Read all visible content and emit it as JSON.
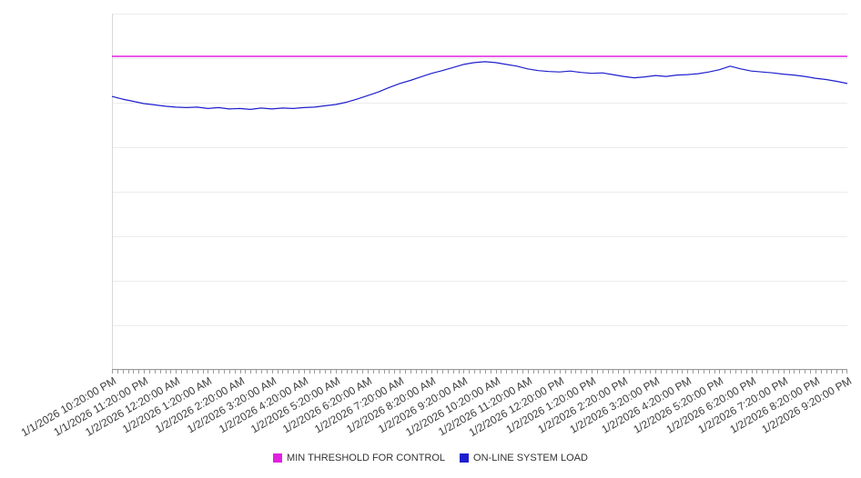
{
  "chart_data": {
    "type": "line",
    "title": "",
    "xlabel": "",
    "ylabel": "",
    "grid": true,
    "legend_position": "bottom",
    "ylim": [
      0,
      80
    ],
    "y_gridline_step": 10,
    "y_axis_labels_visible": false,
    "points_per_hour": 3,
    "minor_ticks_per_hour": 6,
    "x_labels": [
      "1/1/2026 10:20:00 PM",
      "1/1/2026 11:20:00 PM",
      "1/2/2026 12:20:00 AM",
      "1/2/2026 1:20:00 AM",
      "1/2/2026 2:20:00 AM",
      "1/2/2026 3:20:00 AM",
      "1/2/2026 4:20:00 AM",
      "1/2/2026 5:20:00 AM",
      "1/2/2026 6:20:00 AM",
      "1/2/2026 7:20:00 AM",
      "1/2/2026 8:20:00 AM",
      "1/2/2026 9:20:00 AM",
      "1/2/2026 10:20:00 AM",
      "1/2/2026 11:20:00 AM",
      "1/2/2026 12:20:00 PM",
      "1/2/2026 1:20:00 PM",
      "1/2/2026 2:20:00 PM",
      "1/2/2026 3:20:00 PM",
      "1/2/2026 4:20:00 PM",
      "1/2/2026 5:20:00 PM",
      "1/2/2026 6:20:00 PM",
      "1/2/2026 7:20:00 PM",
      "1/2/2026 8:20:00 PM",
      "1/2/2026 9:20:00 PM"
    ],
    "series": [
      {
        "name": "MIN THRESHOLD FOR CONTROL",
        "type": "constant",
        "color": "#e120e1",
        "value": 70.4
      },
      {
        "name": "ON-LINE SYSTEM LOAD",
        "type": "line",
        "color": "#1f1fce",
        "values": [
          61.4,
          60.8,
          60.3,
          59.8,
          59.5,
          59.2,
          59.0,
          58.9,
          59.0,
          58.7,
          58.9,
          58.6,
          58.7,
          58.5,
          58.8,
          58.6,
          58.8,
          58.7,
          58.9,
          59.0,
          59.3,
          59.6,
          60.1,
          60.8,
          61.6,
          62.4,
          63.4,
          64.3,
          65.0,
          65.8,
          66.6,
          67.2,
          67.9,
          68.6,
          69.0,
          69.2,
          69.0,
          68.6,
          68.2,
          67.6,
          67.2,
          67.0,
          66.9,
          67.1,
          66.8,
          66.6,
          66.7,
          66.3,
          65.9,
          65.6,
          65.8,
          66.1,
          65.9,
          66.2,
          66.3,
          66.5,
          66.9,
          67.4,
          68.2,
          67.6,
          67.1,
          66.9,
          66.7,
          66.4,
          66.2,
          65.9,
          65.5,
          65.2,
          64.8,
          64.3
        ]
      }
    ]
  }
}
